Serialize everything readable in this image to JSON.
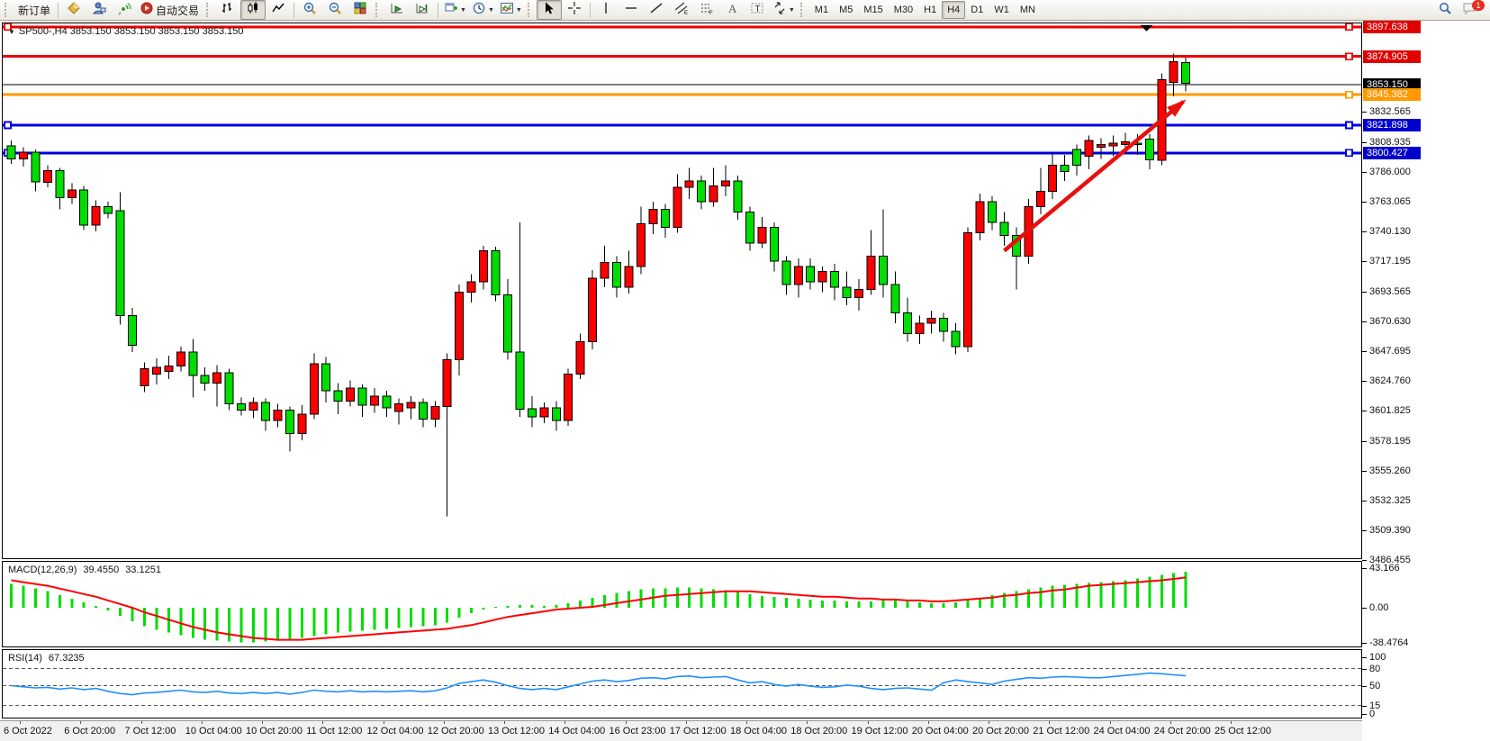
{
  "toolbar": {
    "new_order_label": "新订单",
    "autotrading_label": "自动交易",
    "timeframes": [
      "M1",
      "M5",
      "M15",
      "M30",
      "H1",
      "H4",
      "D1",
      "W1",
      "MN"
    ],
    "active_timeframe": "H4",
    "chat_badge_count": "1"
  },
  "chart_data": {
    "type": "candlestick",
    "symbol_header": "SP500-,H4  3853.150 3853.150 3853.150 3853.150",
    "price_ticks": [
      "3832.565",
      "3808.935",
      "3786.000",
      "3763.065",
      "3740.130",
      "3717.195",
      "3693.565",
      "3670.630",
      "3647.695",
      "3624.760",
      "3601.825",
      "3578.195",
      "3555.260",
      "3532.325",
      "3509.390",
      "3486.455"
    ],
    "badges": [
      {
        "label": "3897.638",
        "price": 3897.638,
        "bg": "#e00000"
      },
      {
        "label": "3874.905",
        "price": 3874.905,
        "bg": "#e00000"
      },
      {
        "label": "3853.150",
        "price": 3853.15,
        "bg": "#000000"
      },
      {
        "label": "3845.382",
        "price": 3845.382,
        "bg": "#ff9900"
      },
      {
        "label": "3821.898",
        "price": 3821.898,
        "bg": "#0000cc"
      },
      {
        "label": "3800.427",
        "price": 3800.427,
        "bg": "#0000cc"
      }
    ],
    "hlines": [
      {
        "price": 3897.638,
        "color": "#ee0000",
        "width": 3,
        "left_handle": true
      },
      {
        "price": 3874.905,
        "color": "#ee0000",
        "width": 3,
        "left_handle": false
      },
      {
        "price": 3845.382,
        "color": "#ff9900",
        "width": 3,
        "left_handle": false
      },
      {
        "price": 3821.898,
        "color": "#0000dd",
        "width": 3,
        "left_handle": true
      },
      {
        "price": 3800.427,
        "color": "#0000dd",
        "width": 3,
        "left_handle": true
      }
    ],
    "current_price": {
      "value": 3853.15,
      "label": "3853.150",
      "line_color": "#000000"
    },
    "trend_arrow": {
      "from_bar": 82.0,
      "from_price": 3725,
      "to_bar": 96.8,
      "to_price": 3840,
      "color": "#e8100e"
    },
    "colors": {
      "bull": "#ff0000",
      "bear": "#00dd00",
      "wick": "#000000"
    },
    "candles": [
      [
        3806,
        3810,
        3792,
        3796
      ],
      [
        3796,
        3805,
        3790,
        3801
      ],
      [
        3801,
        3803,
        3771,
        3778
      ],
      [
        3778,
        3791,
        3774,
        3787
      ],
      [
        3787,
        3789,
        3757,
        3766
      ],
      [
        3766,
        3777,
        3761,
        3772
      ],
      [
        3772,
        3775,
        3741,
        3745
      ],
      [
        3745,
        3764,
        3740,
        3759
      ],
      [
        3759,
        3763,
        3750,
        3754
      ],
      [
        3756,
        3770,
        3668,
        3675
      ],
      [
        3675,
        3681,
        3647,
        3652
      ],
      [
        3621,
        3639,
        3616,
        3634
      ],
      [
        3630,
        3642,
        3622,
        3635
      ],
      [
        3632,
        3644,
        3626,
        3636
      ],
      [
        3636,
        3651,
        3632,
        3647
      ],
      [
        3647,
        3657,
        3612,
        3629
      ],
      [
        3629,
        3635,
        3617,
        3623
      ],
      [
        3623,
        3637,
        3605,
        3631
      ],
      [
        3631,
        3634,
        3602,
        3607
      ],
      [
        3607,
        3612,
        3598,
        3602
      ],
      [
        3602,
        3612,
        3596,
        3608
      ],
      [
        3608,
        3611,
        3586,
        3594
      ],
      [
        3594,
        3607,
        3589,
        3602
      ],
      [
        3602,
        3605,
        3570,
        3584
      ],
      [
        3584,
        3606,
        3579,
        3599
      ],
      [
        3599,
        3646,
        3595,
        3638
      ],
      [
        3638,
        3643,
        3608,
        3617
      ],
      [
        3617,
        3623,
        3599,
        3609
      ],
      [
        3609,
        3625,
        3605,
        3619
      ],
      [
        3619,
        3622,
        3597,
        3606
      ],
      [
        3606,
        3619,
        3600,
        3613
      ],
      [
        3613,
        3617,
        3597,
        3604
      ],
      [
        3601,
        3611,
        3591,
        3607
      ],
      [
        3604,
        3613,
        3595,
        3608
      ],
      [
        3608,
        3611,
        3589,
        3595
      ],
      [
        3595,
        3609,
        3589,
        3605
      ],
      [
        3605,
        3646,
        3520,
        3641
      ],
      [
        3641,
        3699,
        3629,
        3693
      ],
      [
        3693,
        3707,
        3685,
        3701
      ],
      [
        3701,
        3729,
        3695,
        3725
      ],
      [
        3725,
        3728,
        3686,
        3691
      ],
      [
        3691,
        3703,
        3641,
        3647
      ],
      [
        3647,
        3747,
        3597,
        3603
      ],
      [
        3603,
        3613,
        3589,
        3597
      ],
      [
        3597,
        3608,
        3592,
        3604
      ],
      [
        3604,
        3609,
        3586,
        3594
      ],
      [
        3594,
        3634,
        3590,
        3630
      ],
      [
        3630,
        3661,
        3626,
        3655
      ],
      [
        3655,
        3710,
        3649,
        3704
      ],
      [
        3704,
        3729,
        3697,
        3716
      ],
      [
        3716,
        3721,
        3689,
        3697
      ],
      [
        3697,
        3725,
        3692,
        3713
      ],
      [
        3713,
        3759,
        3707,
        3746
      ],
      [
        3746,
        3763,
        3738,
        3757
      ],
      [
        3757,
        3761,
        3735,
        3743
      ],
      [
        3743,
        3784,
        3739,
        3774
      ],
      [
        3774,
        3789,
        3765,
        3779
      ],
      [
        3779,
        3783,
        3757,
        3763
      ],
      [
        3763,
        3789,
        3759,
        3775
      ],
      [
        3775,
        3791,
        3767,
        3779
      ],
      [
        3779,
        3783,
        3749,
        3755
      ],
      [
        3755,
        3759,
        3725,
        3731
      ],
      [
        3731,
        3751,
        3727,
        3743
      ],
      [
        3743,
        3747,
        3709,
        3717
      ],
      [
        3717,
        3721,
        3691,
        3699
      ],
      [
        3699,
        3719,
        3689,
        3713
      ],
      [
        3713,
        3719,
        3695,
        3701
      ],
      [
        3701,
        3713,
        3693,
        3709
      ],
      [
        3709,
        3715,
        3687,
        3697
      ],
      [
        3697,
        3709,
        3683,
        3689
      ],
      [
        3689,
        3703,
        3679,
        3695
      ],
      [
        3695,
        3741,
        3691,
        3721
      ],
      [
        3721,
        3757,
        3689,
        3699
      ],
      [
        3699,
        3709,
        3669,
        3677
      ],
      [
        3677,
        3689,
        3655,
        3661
      ],
      [
        3661,
        3675,
        3653,
        3669
      ],
      [
        3669,
        3679,
        3661,
        3673
      ],
      [
        3673,
        3677,
        3655,
        3663
      ],
      [
        3663,
        3669,
        3645,
        3651
      ],
      [
        3651,
        3743,
        3647,
        3739
      ],
      [
        3739,
        3769,
        3733,
        3763
      ],
      [
        3763,
        3767,
        3741,
        3747
      ],
      [
        3747,
        3755,
        3729,
        3737
      ],
      [
        3737,
        3743,
        3695,
        3721
      ],
      [
        3721,
        3765,
        3715,
        3759
      ],
      [
        3759,
        3789,
        3753,
        3771
      ],
      [
        3771,
        3801,
        3765,
        3791
      ],
      [
        3791,
        3799,
        3779,
        3786
      ],
      [
        3803,
        3807,
        3783,
        3791
      ],
      [
        3798,
        3814,
        3788,
        3810
      ],
      [
        3805,
        3812,
        3796,
        3807
      ],
      [
        3806,
        3814,
        3798,
        3808
      ],
      [
        3807,
        3816,
        3800,
        3809
      ],
      [
        3808,
        3815,
        3799,
        3807
      ],
      [
        3811,
        3815,
        3788,
        3795
      ],
      [
        3795,
        3862,
        3791,
        3857
      ],
      [
        3855,
        3877,
        3844,
        3871
      ],
      [
        3870,
        3874,
        3848,
        3854
      ]
    ],
    "time_labels": [
      "6 Oct 2022",
      "6 Oct 20:00",
      "7 Oct 12:00",
      "10 Oct 04:00",
      "10 Oct 20:00",
      "11 Oct 12:00",
      "12 Oct 04:00",
      "12 Oct 20:00",
      "13 Oct 12:00",
      "14 Oct 04:00",
      "16 Oct 23:00",
      "17 Oct 12:00",
      "18 Oct 04:00",
      "18 Oct 20:00",
      "19 Oct 12:00",
      "20 Oct 04:00",
      "20 Oct 20:00",
      "21 Oct 12:00",
      "24 Oct 04:00",
      "24 Oct 20:00",
      "25 Oct 12:00"
    ],
    "macd": {
      "label": "MACD(12,26,9)",
      "main_value_text": "39.4550",
      "signal_value_text": "33.1251",
      "histogram_color": "#00dd00",
      "signal_color": "#ff0000",
      "scale_labels": [
        {
          "label": "43.166",
          "value": 43.166
        },
        {
          "label": "0.00",
          "value": 0
        },
        {
          "label": "-38.4764",
          "value": -38.4764
        }
      ],
      "histogram": [
        26,
        24,
        21,
        18,
        14,
        10,
        6,
        2,
        -3,
        -9,
        -15,
        -20,
        -24,
        -27,
        -30,
        -33,
        -35,
        -36,
        -37,
        -38,
        -38,
        -37,
        -36,
        -35,
        -33,
        -31,
        -29,
        -27,
        -26,
        -25,
        -24,
        -23,
        -22,
        -21,
        -20,
        -19,
        -16,
        -11,
        -6,
        -2,
        1,
        2,
        3,
        3,
        2,
        3,
        5,
        8,
        11,
        14,
        16,
        18,
        20,
        21,
        21,
        22,
        22,
        21,
        20,
        19,
        17,
        15,
        13,
        12,
        11,
        10,
        9,
        8,
        8,
        7,
        7,
        7,
        8,
        8,
        7,
        6,
        5,
        5,
        6,
        8,
        11,
        14,
        16,
        18,
        20,
        22,
        24,
        25,
        26,
        27,
        28,
        29,
        30,
        32,
        34,
        36,
        38,
        39.5
      ],
      "signal": [
        30,
        28,
        26,
        24,
        21,
        18,
        15,
        12,
        8,
        4,
        0,
        -5,
        -9,
        -13,
        -17,
        -21,
        -24,
        -27,
        -29,
        -31,
        -33,
        -34,
        -35,
        -35,
        -35,
        -34,
        -33,
        -32,
        -31,
        -30,
        -29,
        -28,
        -27,
        -26,
        -25,
        -24,
        -23,
        -21,
        -19,
        -16,
        -13,
        -10,
        -8,
        -6,
        -4,
        -2,
        -1,
        0,
        1,
        3,
        5,
        7,
        9,
        11,
        13,
        14,
        15,
        16,
        17,
        18,
        18,
        18,
        17,
        16,
        15,
        14,
        13,
        12,
        12,
        11,
        10,
        10,
        9,
        9,
        8,
        8,
        7,
        7,
        8,
        9,
        10,
        11,
        13,
        14,
        16,
        17,
        19,
        20,
        22,
        24,
        25,
        26,
        27,
        28,
        29,
        30,
        31.5,
        33.1
      ]
    },
    "rsi": {
      "label": "RSI(14)",
      "value_text": "67.3235",
      "line_color": "#1e90ff",
      "levels": [
        {
          "label": "100",
          "value": 100,
          "dashed": false
        },
        {
          "label": "80",
          "value": 80,
          "dashed": true
        },
        {
          "label": "50",
          "value": 50,
          "dashed": true
        },
        {
          "label": "15",
          "value": 15,
          "dashed": true
        },
        {
          "label": "0",
          "value": 0,
          "dashed": false
        }
      ],
      "values": [
        50,
        48,
        46,
        47,
        44,
        46,
        43,
        45,
        40,
        36,
        34,
        37,
        38,
        40,
        42,
        39,
        38,
        40,
        37,
        36,
        38,
        36,
        38,
        35,
        38,
        42,
        40,
        39,
        41,
        39,
        40,
        39,
        40,
        41,
        39,
        41,
        46,
        54,
        57,
        60,
        56,
        50,
        45,
        43,
        45,
        43,
        48,
        53,
        58,
        60,
        57,
        59,
        63,
        64,
        62,
        66,
        67,
        64,
        65,
        66,
        60,
        55,
        57,
        52,
        49,
        52,
        49,
        47,
        48,
        51,
        49,
        45,
        43,
        45,
        46,
        44,
        42,
        55,
        60,
        57,
        55,
        52,
        58,
        61,
        64,
        63,
        65,
        66,
        65,
        64,
        64,
        66,
        68,
        70,
        72,
        71,
        69,
        67.3
      ]
    }
  }
}
